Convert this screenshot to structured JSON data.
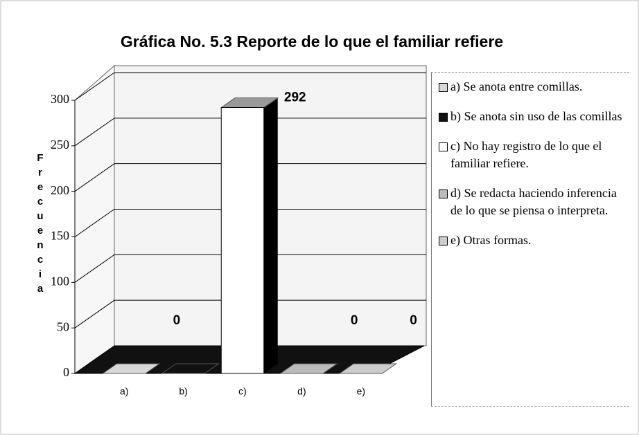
{
  "chart_data": {
    "type": "bar3d",
    "title": "Gráfica No. 5.3 Reporte de lo que el familiar refiere",
    "y_label": "Frecuencia",
    "categories": [
      "a)",
      "b)",
      "c)",
      "d)",
      "e)"
    ],
    "values": [
      0,
      0,
      292,
      0,
      0
    ],
    "colors": [
      "#d8d8d8",
      "#111111",
      "#ffffff",
      "#bbbbbb",
      "#cccccc"
    ],
    "ylim": [
      0,
      300
    ],
    "yticks": [
      0,
      50,
      100,
      150,
      200,
      250,
      300
    ],
    "grid": true,
    "legend": [
      "a) Se anota entre comillas.",
      "b) Se anota sin uso de las comillas",
      "c) No hay registro de lo que el familiar refiere.",
      "d) Se redacta haciendo inferencia de lo que se piensa o interpreta.",
      "e) Otras formas."
    ]
  }
}
